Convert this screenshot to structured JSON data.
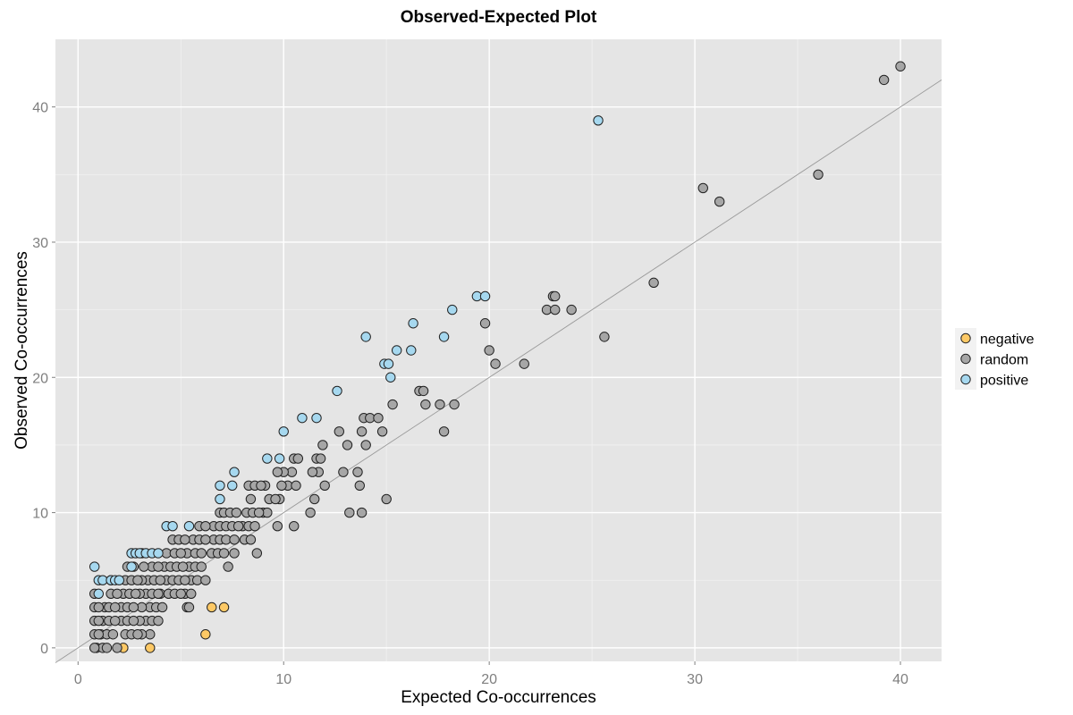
{
  "chart_data": {
    "type": "scatter",
    "title": "Observed-Expected Plot",
    "xlabel": "Expected Co-occurrences",
    "ylabel": "Observed Co-occurrences",
    "xlim": [
      -1.1,
      42
    ],
    "ylim": [
      -1.0,
      45
    ],
    "x_ticks": [
      0,
      10,
      20,
      30,
      40
    ],
    "y_ticks": [
      0,
      10,
      20,
      30,
      40
    ],
    "grid": true,
    "legend_position": "right",
    "background": "#e5e5e5",
    "reference_line": {
      "slope": 1,
      "intercept": 0,
      "color": "#9a9a9a"
    },
    "series": [
      {
        "name": "negative",
        "color": "#fdc966",
        "points": [
          [
            2.2,
            0
          ],
          [
            3.5,
            0
          ],
          [
            6.2,
            1
          ],
          [
            6.5,
            3
          ],
          [
            7.1,
            3
          ]
        ]
      },
      {
        "name": "random",
        "color": "#a6a6a6",
        "points": [
          [
            40.0,
            43
          ],
          [
            39.2,
            42
          ],
          [
            36.0,
            35
          ],
          [
            30.4,
            34
          ],
          [
            31.2,
            33
          ],
          [
            28.0,
            27
          ],
          [
            25.6,
            23
          ],
          [
            23.1,
            26
          ],
          [
            23.2,
            26
          ],
          [
            22.8,
            25
          ],
          [
            23.2,
            25
          ],
          [
            24.0,
            25
          ],
          [
            19.8,
            24
          ],
          [
            20.0,
            22
          ],
          [
            20.3,
            21
          ],
          [
            21.7,
            21
          ],
          [
            16.6,
            19
          ],
          [
            16.8,
            19
          ],
          [
            16.9,
            18
          ],
          [
            17.6,
            18
          ],
          [
            18.3,
            18
          ],
          [
            17.8,
            16
          ],
          [
            15.0,
            11
          ],
          [
            13.9,
            17
          ],
          [
            14.2,
            17
          ],
          [
            14.6,
            17
          ],
          [
            15.3,
            18
          ],
          [
            14.8,
            16
          ],
          [
            13.8,
            16
          ],
          [
            14.0,
            15
          ],
          [
            12.7,
            16
          ],
          [
            13.1,
            15
          ],
          [
            12.9,
            13
          ],
          [
            13.6,
            13
          ],
          [
            13.7,
            12
          ],
          [
            13.2,
            10
          ],
          [
            13.8,
            10
          ],
          [
            11.9,
            15
          ],
          [
            11.6,
            14
          ],
          [
            11.8,
            14
          ],
          [
            11.7,
            13
          ],
          [
            11.4,
            13
          ],
          [
            12.0,
            12
          ],
          [
            11.5,
            11
          ],
          [
            11.3,
            10
          ],
          [
            10.5,
            14
          ],
          [
            10.7,
            14
          ],
          [
            10.4,
            13
          ],
          [
            10.2,
            12
          ],
          [
            10.6,
            12
          ],
          [
            10.0,
            13
          ],
          [
            9.7,
            13
          ],
          [
            9.9,
            12
          ],
          [
            9.8,
            11
          ],
          [
            10.5,
            9
          ],
          [
            9.1,
            12
          ],
          [
            9.3,
            11
          ],
          [
            9.0,
            10
          ],
          [
            9.2,
            10
          ],
          [
            9.6,
            11
          ],
          [
            9.7,
            9
          ],
          [
            8.3,
            12
          ],
          [
            8.6,
            12
          ],
          [
            8.9,
            12
          ],
          [
            8.4,
            11
          ],
          [
            8.2,
            10
          ],
          [
            8.5,
            10
          ],
          [
            8.8,
            10
          ],
          [
            8.0,
            9
          ],
          [
            8.3,
            9
          ],
          [
            8.6,
            9
          ],
          [
            8.1,
            8
          ],
          [
            8.4,
            8
          ],
          [
            8.7,
            7
          ],
          [
            6.9,
            10
          ],
          [
            7.1,
            10
          ],
          [
            7.4,
            10
          ],
          [
            7.7,
            10
          ],
          [
            6.6,
            9
          ],
          [
            6.9,
            9
          ],
          [
            7.2,
            9
          ],
          [
            7.5,
            9
          ],
          [
            7.8,
            9
          ],
          [
            6.6,
            8
          ],
          [
            6.9,
            8
          ],
          [
            7.2,
            8
          ],
          [
            7.6,
            8
          ],
          [
            6.5,
            7
          ],
          [
            6.8,
            7
          ],
          [
            7.1,
            7
          ],
          [
            7.6,
            7
          ],
          [
            7.3,
            6
          ],
          [
            5.9,
            9
          ],
          [
            6.2,
            9
          ],
          [
            5.6,
            8
          ],
          [
            5.9,
            8
          ],
          [
            6.2,
            8
          ],
          [
            5.3,
            7
          ],
          [
            5.7,
            7
          ],
          [
            6.0,
            7
          ],
          [
            5.4,
            6
          ],
          [
            5.7,
            6
          ],
          [
            6.0,
            6
          ],
          [
            5.5,
            5
          ],
          [
            5.8,
            5
          ],
          [
            6.2,
            5
          ],
          [
            5.2,
            4
          ],
          [
            5.5,
            4
          ],
          [
            5.3,
            3
          ],
          [
            5.4,
            3
          ],
          [
            4.6,
            8
          ],
          [
            4.9,
            8
          ],
          [
            5.2,
            8
          ],
          [
            4.3,
            7
          ],
          [
            4.7,
            7
          ],
          [
            5.0,
            7
          ],
          [
            4.2,
            6
          ],
          [
            4.5,
            6
          ],
          [
            4.8,
            6
          ],
          [
            5.1,
            6
          ],
          [
            4.3,
            5
          ],
          [
            4.6,
            5
          ],
          [
            4.9,
            5
          ],
          [
            5.2,
            5
          ],
          [
            4.0,
            4
          ],
          [
            4.4,
            4
          ],
          [
            4.7,
            4
          ],
          [
            5.0,
            4
          ],
          [
            3.6,
            6
          ],
          [
            3.9,
            6
          ],
          [
            3.4,
            5
          ],
          [
            3.7,
            5
          ],
          [
            4.0,
            5
          ],
          [
            3.3,
            4
          ],
          [
            3.6,
            4
          ],
          [
            3.9,
            4
          ],
          [
            3.5,
            3
          ],
          [
            3.8,
            3
          ],
          [
            4.1,
            3
          ],
          [
            3.3,
            2
          ],
          [
            3.6,
            2
          ],
          [
            3.9,
            2
          ],
          [
            3.5,
            1
          ],
          [
            3.1,
            7
          ],
          [
            3.2,
            6
          ],
          [
            3.1,
            5
          ],
          [
            3.0,
            4
          ],
          [
            3.1,
            3
          ],
          [
            3.0,
            2
          ],
          [
            3.1,
            1
          ],
          [
            2.4,
            6
          ],
          [
            2.7,
            6
          ],
          [
            2.3,
            5
          ],
          [
            2.6,
            5
          ],
          [
            2.9,
            5
          ],
          [
            2.2,
            4
          ],
          [
            2.5,
            4
          ],
          [
            2.8,
            4
          ],
          [
            2.1,
            3
          ],
          [
            2.4,
            3
          ],
          [
            2.7,
            3
          ],
          [
            2.1,
            2
          ],
          [
            2.4,
            2
          ],
          [
            2.7,
            2
          ],
          [
            2.3,
            1
          ],
          [
            2.6,
            1
          ],
          [
            2.9,
            1
          ],
          [
            1.6,
            5
          ],
          [
            1.6,
            4
          ],
          [
            1.9,
            4
          ],
          [
            1.3,
            3
          ],
          [
            1.5,
            3
          ],
          [
            1.8,
            3
          ],
          [
            1.2,
            2
          ],
          [
            1.5,
            2
          ],
          [
            1.8,
            2
          ],
          [
            1.1,
            1
          ],
          [
            1.4,
            1
          ],
          [
            1.7,
            1
          ],
          [
            0.9,
            0
          ],
          [
            1.2,
            0
          ],
          [
            1.4,
            0
          ],
          [
            1.9,
            0
          ],
          [
            0.8,
            4
          ],
          [
            0.8,
            3
          ],
          [
            1.0,
            3
          ],
          [
            0.8,
            2
          ],
          [
            1.0,
            2
          ],
          [
            0.8,
            1
          ],
          [
            1.0,
            1
          ],
          [
            0.8,
            0
          ]
        ]
      },
      {
        "name": "positive",
        "color": "#a6d8ef",
        "points": [
          [
            25.3,
            39
          ],
          [
            19.4,
            26
          ],
          [
            19.8,
            26
          ],
          [
            18.2,
            25
          ],
          [
            16.3,
            24
          ],
          [
            14.0,
            23
          ],
          [
            17.8,
            23
          ],
          [
            16.2,
            22
          ],
          [
            15.5,
            22
          ],
          [
            14.9,
            21
          ],
          [
            15.1,
            21
          ],
          [
            15.2,
            20
          ],
          [
            12.6,
            19
          ],
          [
            10.9,
            17
          ],
          [
            11.6,
            17
          ],
          [
            10.0,
            16
          ],
          [
            9.2,
            14
          ],
          [
            9.8,
            14
          ],
          [
            7.6,
            13
          ],
          [
            6.9,
            12
          ],
          [
            7.5,
            12
          ],
          [
            6.9,
            11
          ],
          [
            4.3,
            9
          ],
          [
            4.6,
            9
          ],
          [
            5.4,
            9
          ],
          [
            2.6,
            7
          ],
          [
            2.8,
            7
          ],
          [
            3.0,
            7
          ],
          [
            3.3,
            7
          ],
          [
            3.6,
            7
          ],
          [
            3.9,
            7
          ],
          [
            2.6,
            6
          ],
          [
            0.8,
            6
          ],
          [
            1.0,
            5
          ],
          [
            1.2,
            5
          ],
          [
            1.6,
            5
          ],
          [
            1.8,
            5
          ],
          [
            2.0,
            5
          ],
          [
            1.0,
            4
          ]
        ]
      }
    ]
  }
}
